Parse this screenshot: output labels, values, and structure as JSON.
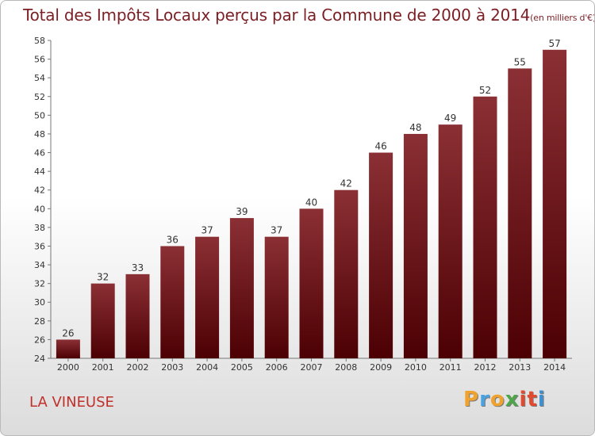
{
  "title": {
    "main": "Total des Impôts Locaux perçus par la Commune de 2000 à 2014",
    "unit": "(en milliers d'€)"
  },
  "commune": "LA VINEUSE",
  "logo": {
    "letters": [
      "P",
      "r",
      "o",
      "x",
      "i",
      "t",
      "i"
    ],
    "colors": [
      "#f0a22e",
      "#4aa3df",
      "#f0a22e",
      "#4fa64a",
      "#e2492f",
      "#e2492f",
      "#3d8fd1"
    ]
  },
  "chart_data": {
    "type": "bar",
    "title": "Total des Impôts Locaux perçus par la Commune de 2000 à 2014",
    "xlabel": "",
    "ylabel": "",
    "categories": [
      "2000",
      "2001",
      "2002",
      "2003",
      "2004",
      "2005",
      "2006",
      "2007",
      "2008",
      "2009",
      "2010",
      "2011",
      "2012",
      "2013",
      "2014"
    ],
    "values": [
      26,
      32,
      33,
      36,
      37,
      39,
      37,
      40,
      42,
      46,
      48,
      49,
      52,
      55,
      57
    ],
    "ylim": [
      24,
      58
    ],
    "yticks": [
      24,
      26,
      28,
      30,
      32,
      34,
      36,
      38,
      40,
      42,
      44,
      46,
      48,
      50,
      52,
      54,
      56,
      58
    ],
    "grid": false,
    "bar_color_top": "#8b3035",
    "bar_color_bottom": "#4c0003"
  }
}
